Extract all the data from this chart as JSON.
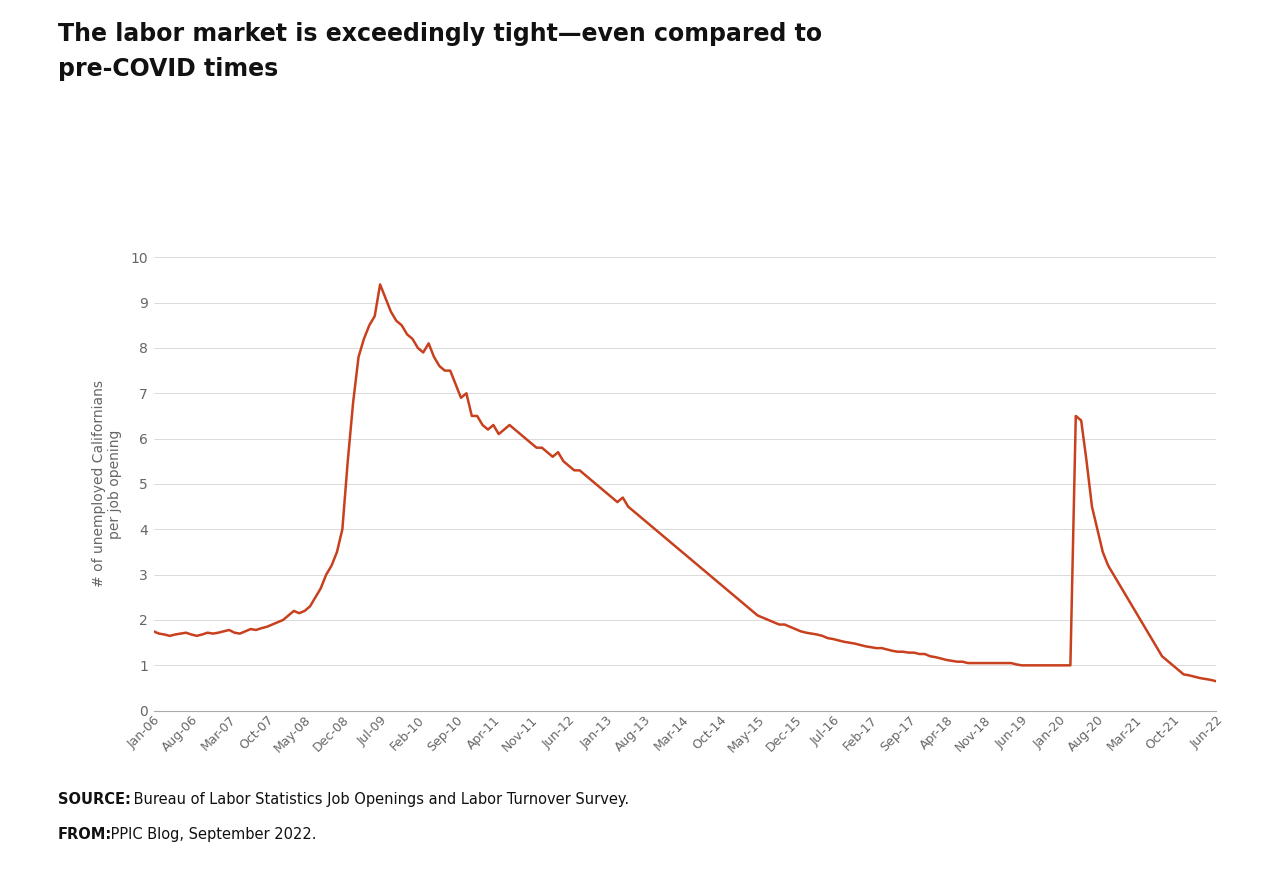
{
  "title_line1": "The labor market is exceedingly tight—even compared to",
  "title_line2": "pre-COVID times",
  "ylabel": "# of unemployed Californians\nper job opening",
  "line_color": "#C8401E",
  "line_width": 1.8,
  "ylim": [
    0,
    10
  ],
  "yticks": [
    0,
    1,
    2,
    3,
    4,
    5,
    6,
    7,
    8,
    9,
    10
  ],
  "source_bold": "SOURCE:",
  "source_rest": " Bureau of Labor Statistics Job Openings and Labor Turnover Survey.",
  "from_bold": "FROM:",
  "from_rest": " PPIC Blog, September 2022.",
  "bg_color": "#FFFFFF",
  "footer_bg": "#E5E5E5",
  "xtick_labels": [
    "Jan-06",
    "Aug-06",
    "Mar-07",
    "Oct-07",
    "May-08",
    "Dec-08",
    "Jul-09",
    "Feb-10",
    "Sep-10",
    "Apr-11",
    "Nov-11",
    "Jun-12",
    "Jan-13",
    "Aug-13",
    "Mar-14",
    "Oct-14",
    "May-15",
    "Dec-15",
    "Jul-16",
    "Feb-17",
    "Sep-17",
    "Apr-18",
    "Nov-18",
    "Jun-19",
    "Jan-20",
    "Aug-20",
    "Mar-21",
    "Oct-21",
    "Jun-22"
  ],
  "monthly_data": {
    "2006-01": 1.75,
    "2006-02": 1.7,
    "2006-03": 1.68,
    "2006-04": 1.65,
    "2006-05": 1.68,
    "2006-06": 1.7,
    "2006-07": 1.72,
    "2006-08": 1.68,
    "2006-09": 1.65,
    "2006-10": 1.68,
    "2006-11": 1.72,
    "2006-12": 1.7,
    "2007-01": 1.72,
    "2007-02": 1.75,
    "2007-03": 1.78,
    "2007-04": 1.72,
    "2007-05": 1.7,
    "2007-06": 1.75,
    "2007-07": 1.8,
    "2007-08": 1.78,
    "2007-09": 1.82,
    "2007-10": 1.85,
    "2007-11": 1.9,
    "2007-12": 1.95,
    "2008-01": 2.0,
    "2008-02": 2.1,
    "2008-03": 2.2,
    "2008-04": 2.15,
    "2008-05": 2.2,
    "2008-06": 2.3,
    "2008-07": 2.5,
    "2008-08": 2.7,
    "2008-09": 3.0,
    "2008-10": 3.2,
    "2008-11": 3.5,
    "2008-12": 4.0,
    "2009-01": 5.5,
    "2009-02": 6.8,
    "2009-03": 7.8,
    "2009-04": 8.2,
    "2009-05": 8.5,
    "2009-06": 8.7,
    "2009-07": 9.4,
    "2009-08": 9.1,
    "2009-09": 8.8,
    "2009-10": 8.6,
    "2009-11": 8.5,
    "2009-12": 8.3,
    "2010-01": 8.2,
    "2010-02": 8.0,
    "2010-03": 7.9,
    "2010-04": 8.1,
    "2010-05": 7.8,
    "2010-06": 7.6,
    "2010-07": 7.5,
    "2010-08": 7.5,
    "2010-09": 7.2,
    "2010-10": 6.9,
    "2010-11": 7.0,
    "2010-12": 6.5,
    "2011-01": 6.5,
    "2011-02": 6.3,
    "2011-03": 6.2,
    "2011-04": 6.3,
    "2011-05": 6.1,
    "2011-06": 6.2,
    "2011-07": 6.3,
    "2011-08": 6.2,
    "2011-09": 6.1,
    "2011-10": 6.0,
    "2011-11": 5.9,
    "2011-12": 5.8,
    "2012-01": 5.8,
    "2012-02": 5.7,
    "2012-03": 5.6,
    "2012-04": 5.7,
    "2012-05": 5.5,
    "2012-06": 5.4,
    "2012-07": 5.3,
    "2012-08": 5.3,
    "2012-09": 5.2,
    "2012-10": 5.1,
    "2012-11": 5.0,
    "2012-12": 4.9,
    "2013-01": 4.8,
    "2013-02": 4.7,
    "2013-03": 4.6,
    "2013-04": 4.7,
    "2013-05": 4.5,
    "2013-06": 4.4,
    "2013-07": 4.3,
    "2013-08": 4.2,
    "2013-09": 4.1,
    "2013-10": 4.0,
    "2013-11": 3.9,
    "2013-12": 3.8,
    "2014-01": 3.7,
    "2014-02": 3.6,
    "2014-03": 3.5,
    "2014-04": 3.4,
    "2014-05": 3.3,
    "2014-06": 3.2,
    "2014-07": 3.1,
    "2014-08": 3.0,
    "2014-09": 2.9,
    "2014-10": 2.8,
    "2014-11": 2.7,
    "2014-12": 2.6,
    "2015-01": 2.5,
    "2015-02": 2.4,
    "2015-03": 2.3,
    "2015-04": 2.2,
    "2015-05": 2.1,
    "2015-06": 2.05,
    "2015-07": 2.0,
    "2015-08": 1.95,
    "2015-09": 1.9,
    "2015-10": 1.9,
    "2015-11": 1.85,
    "2015-12": 1.8,
    "2016-01": 1.75,
    "2016-02": 1.72,
    "2016-03": 1.7,
    "2016-04": 1.68,
    "2016-05": 1.65,
    "2016-06": 1.6,
    "2016-07": 1.58,
    "2016-08": 1.55,
    "2016-09": 1.52,
    "2016-10": 1.5,
    "2016-11": 1.48,
    "2016-12": 1.45,
    "2017-01": 1.42,
    "2017-02": 1.4,
    "2017-03": 1.38,
    "2017-04": 1.38,
    "2017-05": 1.35,
    "2017-06": 1.32,
    "2017-07": 1.3,
    "2017-08": 1.3,
    "2017-09": 1.28,
    "2017-10": 1.28,
    "2017-11": 1.25,
    "2017-12": 1.25,
    "2018-01": 1.2,
    "2018-02": 1.18,
    "2018-03": 1.15,
    "2018-04": 1.12,
    "2018-05": 1.1,
    "2018-06": 1.08,
    "2018-07": 1.08,
    "2018-08": 1.05,
    "2018-09": 1.05,
    "2018-10": 1.05,
    "2018-11": 1.05,
    "2018-12": 1.05,
    "2019-01": 1.05,
    "2019-02": 1.05,
    "2019-03": 1.05,
    "2019-04": 1.05,
    "2019-05": 1.02,
    "2019-06": 1.0,
    "2019-07": 1.0,
    "2019-08": 1.0,
    "2019-09": 1.0,
    "2019-10": 1.0,
    "2019-11": 1.0,
    "2019-12": 1.0,
    "2020-01": 1.0,
    "2020-02": 1.0,
    "2020-03": 1.0,
    "2020-04": 6.5,
    "2020-05": 6.4,
    "2020-06": 5.5,
    "2020-07": 4.5,
    "2020-08": 4.0,
    "2020-09": 3.5,
    "2020-10": 3.2,
    "2020-11": 3.0,
    "2020-12": 2.8,
    "2021-01": 2.6,
    "2021-02": 2.4,
    "2021-03": 2.2,
    "2021-04": 2.0,
    "2021-05": 1.8,
    "2021-06": 1.6,
    "2021-07": 1.4,
    "2021-08": 1.2,
    "2021-09": 1.1,
    "2021-10": 1.0,
    "2021-11": 0.9,
    "2021-12": 0.8,
    "2022-01": 0.78,
    "2022-02": 0.75,
    "2022-03": 0.72,
    "2022-04": 0.7,
    "2022-05": 0.68,
    "2022-06": 0.65
  }
}
